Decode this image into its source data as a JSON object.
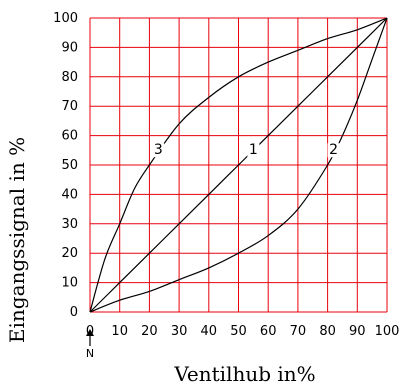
{
  "chart_data": {
    "type": "line",
    "xlabel": "Ventilhub in%",
    "ylabel": "Eingangssignal in %",
    "xlim": [
      0,
      100
    ],
    "ylim": [
      0,
      100
    ],
    "x_ticks": [
      0,
      10,
      20,
      30,
      40,
      50,
      60,
      70,
      80,
      90,
      100
    ],
    "y_ticks": [
      0,
      10,
      20,
      30,
      40,
      50,
      60,
      70,
      80,
      90,
      100
    ],
    "grid": true,
    "colors": {
      "grid": "#e8000b",
      "curve": "#000000"
    },
    "zero_marker": "N",
    "series": [
      {
        "name": "1",
        "x": [
          0,
          10,
          20,
          30,
          40,
          50,
          60,
          70,
          80,
          90,
          100
        ],
        "y": [
          0,
          10,
          20,
          30,
          40,
          50,
          60,
          70,
          80,
          90,
          100
        ]
      },
      {
        "name": "2",
        "x": [
          0,
          10,
          20,
          30,
          40,
          50,
          60,
          70,
          80,
          85,
          90,
          95,
          100
        ],
        "y": [
          0,
          4,
          7,
          11,
          15,
          20,
          26,
          35,
          50,
          60,
          72,
          86,
          100
        ]
      },
      {
        "name": "3",
        "x": [
          0,
          5,
          10,
          15,
          20,
          30,
          40,
          50,
          60,
          70,
          80,
          90,
          100
        ],
        "y": [
          0,
          18,
          30,
          42,
          50,
          64,
          73,
          80,
          85,
          89,
          93,
          96,
          100
        ]
      }
    ],
    "curve_label_positions": [
      {
        "series": "1",
        "x": 55,
        "y": 54
      },
      {
        "series": "2",
        "x": 82,
        "y": 54
      },
      {
        "series": "3",
        "x": 23,
        "y": 54
      }
    ]
  }
}
